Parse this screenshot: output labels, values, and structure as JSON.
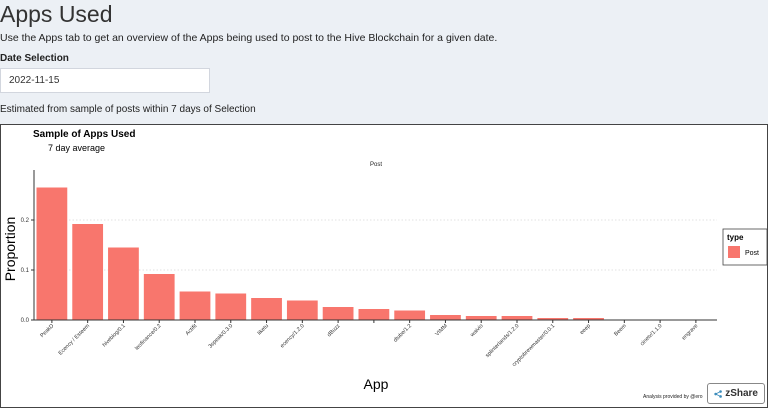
{
  "page": {
    "title": "Apps Used",
    "subtitle": "Use the Apps tab to get an overview of the Apps being used to post to the Hive Blockchain for a given date.",
    "date_label": "Date Selection",
    "date_value": "2022-11-15",
    "note": "Estimated from sample of posts within 7 days of Selection",
    "credit": "Analysis provided by @ero",
    "share_button": "zShare",
    "share_icon": "share-icon"
  },
  "chart_data": {
    "type": "bar",
    "title": "Sample of Apps Used",
    "subtitle": "7 day average",
    "facet": "Post",
    "xlabel": "App",
    "ylabel": "Proportion",
    "ylim": [
      0,
      0.3
    ],
    "yticks": [
      "0.0",
      "0.1",
      "0.2"
    ],
    "categories": [
      "PeakD",
      "Ecency / Esteem",
      "hiveblog/0.1",
      "leofinance/0.2",
      "Actifit",
      "3speak/0.3.0",
      "liketu",
      "ecency/1.2.0",
      "dBuzz",
      "",
      "dtube/1.2",
      "VIMM",
      "waivio",
      "splinterlands/1.2.0",
      "cryptobrewmaster/0.0.1",
      "eeep",
      "Beem",
      "cinetv/1.1.0",
      "engrave"
    ],
    "series": [
      {
        "name": "Post",
        "values": [
          0.265,
          0.192,
          0.145,
          0.092,
          0.057,
          0.053,
          0.044,
          0.039,
          0.026,
          0.022,
          0.019,
          0.01,
          0.008,
          0.008,
          0.004,
          0.004,
          0.001,
          0.001,
          0.001
        ]
      }
    ],
    "legend": {
      "title": "type",
      "position": "right"
    },
    "colors": {
      "bar": "#F8766D",
      "grid": "#d9d9d9"
    }
  }
}
